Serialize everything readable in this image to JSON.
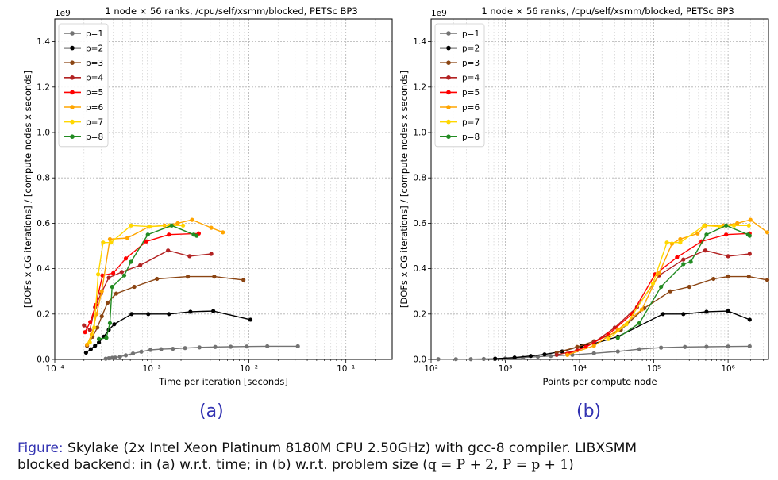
{
  "colors": {
    "p=1": "#737373",
    "p=2": "#000000",
    "p=3": "#8b4513",
    "p=4": "#b22222",
    "p=5": "#ff0000",
    "p=6": "#ffa500",
    "p=7": "#ffd700",
    "p=8": "#228b22"
  },
  "chart_data": [
    {
      "type": "line",
      "title": "1 node × 56 ranks, /cpu/self/xsmm/blocked, PETSc BP3",
      "xlabel": "Time per iteration [seconds]",
      "ylabel": "[DOFs x CG iterations] / [compute nodes x seconds]",
      "xscale": "log",
      "xlim": [
        0.0001,
        0.3
      ],
      "ylim": [
        0,
        1500000000.0
      ],
      "y_offset_label": "1e9",
      "x_ticks": [
        0.0001,
        0.001,
        0.01,
        0.1
      ],
      "x_tick_labels": [
        "10⁻⁴",
        "10⁻³",
        "10⁻²",
        "10⁻¹"
      ],
      "y_ticks": [
        0,
        0.2,
        0.4,
        0.6,
        0.8,
        1.0,
        1.2,
        1.4
      ],
      "y_tick_labels": [
        "0.0",
        "0.2",
        "0.4",
        "0.6",
        "0.8",
        "1.0",
        "1.2",
        "1.4"
      ],
      "grid": true,
      "legend_position": "top-left",
      "series": [
        {
          "name": "p=1",
          "x": [
            0.000335,
            0.00036,
            0.00039,
            0.00042,
            0.00047,
            0.00054,
            0.00064,
            0.00078,
            0.00097,
            0.00125,
            0.00165,
            0.0022,
            0.0031,
            0.0045,
            0.0065,
            0.0095,
            0.0155,
            0.032
          ],
          "y": [
            0.003,
            0.005,
            0.007,
            0.008,
            0.012,
            0.018,
            0.026,
            0.034,
            0.042,
            0.045,
            0.047,
            0.05,
            0.053,
            0.055,
            0.056,
            0.057,
            0.058,
            0.058
          ]
        },
        {
          "name": "p=2",
          "x": [
            0.00021,
            0.000235,
            0.00026,
            0.000285,
            0.00032,
            0.00036,
            0.00041,
            0.00062,
            0.00092,
            0.0015,
            0.0025,
            0.0043,
            0.0104
          ],
          "y": [
            0.03,
            0.045,
            0.06,
            0.075,
            0.1,
            0.13,
            0.155,
            0.2,
            0.2,
            0.2,
            0.21,
            0.213,
            0.175
          ]
        },
        {
          "name": "p=3",
          "x": [
            0.000215,
            0.000245,
            0.000275,
            0.000305,
            0.00035,
            0.00043,
            0.00066,
            0.00113,
            0.00235,
            0.0044,
            0.0088
          ],
          "y": [
            0.06,
            0.1,
            0.14,
            0.19,
            0.25,
            0.29,
            0.32,
            0.355,
            0.365,
            0.365,
            0.35
          ]
        },
        {
          "name": "p=4",
          "x": [
            0.0002,
            0.00023,
            0.00026,
            0.0003,
            0.00036,
            0.00049,
            0.00076,
            0.00147,
            0.00245,
            0.0041
          ],
          "y": [
            0.15,
            0.13,
            0.23,
            0.29,
            0.36,
            0.385,
            0.415,
            0.48,
            0.455,
            0.465
          ]
        },
        {
          "name": "p=5",
          "x": [
            0.000205,
            0.000232,
            0.000265,
            0.00031,
            0.0004,
            0.00054,
            0.00088,
            0.0015,
            0.00305
          ],
          "y": [
            0.12,
            0.165,
            0.24,
            0.37,
            0.38,
            0.445,
            0.52,
            0.55,
            0.555
          ]
        },
        {
          "name": "p=6",
          "x": [
            0.000215,
            0.00024,
            0.00027,
            0.000305,
            0.00037,
            0.00056,
            0.00094,
            0.00135,
            0.00185,
            0.0026,
            0.0041,
            0.0054
          ],
          "y": [
            0.065,
            0.11,
            0.2,
            0.3,
            0.53,
            0.535,
            0.585,
            0.59,
            0.6,
            0.615,
            0.58,
            0.56
          ]
        },
        {
          "name": "p=7",
          "x": [
            0.00023,
            0.000255,
            0.00028,
            0.000315,
            0.00038,
            0.00061,
            0.00095,
            0.0015,
            0.0021
          ],
          "y": [
            0.075,
            0.14,
            0.375,
            0.515,
            0.515,
            0.59,
            0.585,
            0.59,
            0.59
          ]
        },
        {
          "name": "p=8",
          "x": [
            0.000285,
            0.00034,
            0.00037,
            0.00039,
            0.00052,
            0.00061,
            0.00091,
            0.0016,
            0.0027,
            0.0029
          ],
          "y": [
            0.09,
            0.095,
            0.16,
            0.32,
            0.37,
            0.43,
            0.55,
            0.59,
            0.55,
            0.545
          ]
        }
      ]
    },
    {
      "type": "line",
      "title": "1 node × 56 ranks, /cpu/self/xsmm/blocked, PETSc BP3",
      "xlabel": "Points per compute node",
      "ylabel": "[DOFs x CG iterations] / [compute nodes x seconds]",
      "xscale": "log",
      "xlim": [
        100,
        3500000
      ],
      "ylim": [
        0,
        1500000000.0
      ],
      "y_offset_label": "1e9",
      "x_ticks": [
        100,
        1000,
        10000,
        100000,
        1000000
      ],
      "x_tick_labels": [
        "10²",
        "10³",
        "10⁴",
        "10⁵",
        "10⁶"
      ],
      "y_ticks": [
        0,
        0.2,
        0.4,
        0.6,
        0.8,
        1.0,
        1.2,
        1.4
      ],
      "y_tick_labels": [
        "0.0",
        "0.2",
        "0.4",
        "0.6",
        "0.8",
        "1.0",
        "1.2",
        "1.4"
      ],
      "grid": true,
      "legend_position": "top-left",
      "series": [
        {
          "name": "p=1",
          "x": [
            125,
            216,
            343,
            512,
            729,
            1000,
            1728,
            2744,
            4096,
            8000,
            15625,
            32768,
            64000,
            125000,
            262144,
            512000,
            1000000,
            1953125
          ],
          "y": [
            0.001,
            0.001,
            0.001,
            0.002,
            0.003,
            0.004,
            0.008,
            0.012,
            0.015,
            0.02,
            0.027,
            0.035,
            0.045,
            0.052,
            0.055,
            0.056,
            0.057,
            0.058
          ]
        },
        {
          "name": "p=2",
          "x": [
            729,
            1331,
            2197,
            3375,
            5832,
            10648,
            15625,
            32768,
            132651,
            250047,
            512000,
            1000000,
            1953125
          ],
          "y": [
            0.003,
            0.008,
            0.015,
            0.022,
            0.035,
            0.06,
            0.07,
            0.1,
            0.2,
            0.2,
            0.21,
            0.213,
            0.175
          ]
        },
        {
          "name": "p=3",
          "x": [
            4913,
            9261,
            15625,
            24389,
            35937,
            74088,
            166375,
            300763,
            636056,
            1000000,
            1906624,
            3375000
          ],
          "y": [
            0.03,
            0.055,
            0.08,
            0.105,
            0.13,
            0.225,
            0.3,
            0.32,
            0.355,
            0.365,
            0.365,
            0.35
          ]
        },
        {
          "name": "p=4",
          "x": [
            4913,
            9261,
            15625,
            29791,
            59319,
            117649,
            250047,
            493039,
            1000000,
            1953125
          ],
          "y": [
            0.02,
            0.04,
            0.075,
            0.14,
            0.23,
            0.37,
            0.44,
            0.48,
            0.455,
            0.465
          ]
        },
        {
          "name": "p=5",
          "x": [
            6859,
            12167,
            24389,
            50653,
            103823,
            205379,
            438976,
            941192,
            1953125
          ],
          "y": [
            0.025,
            0.055,
            0.11,
            0.2,
            0.375,
            0.45,
            0.52,
            0.55,
            0.555
          ]
        },
        {
          "name": "p=6",
          "x": [
            6859,
            15625,
            32768,
            68921,
            117649,
            175616,
            226981,
            389017,
            493039,
            857375,
            1331000,
            2000376,
            3375000
          ],
          "y": [
            0.02,
            0.06,
            0.13,
            0.22,
            0.38,
            0.51,
            0.53,
            0.555,
            0.59,
            0.59,
            0.6,
            0.615,
            0.56
          ]
        },
        {
          "name": "p=7",
          "x": [
            24389,
            42875,
            97336,
            150000,
            226981,
            474552,
            778688,
            1200000,
            1906624
          ],
          "y": [
            0.09,
            0.155,
            0.335,
            0.515,
            0.515,
            0.59,
            0.585,
            0.59,
            0.59
          ]
        },
        {
          "name": "p=8",
          "x": [
            32768,
            64000,
            125000,
            250047,
            314432,
            512000,
            941192,
            1860867,
            1953125
          ],
          "y": [
            0.095,
            0.16,
            0.32,
            0.42,
            0.43,
            0.55,
            0.59,
            0.55,
            0.545
          ]
        }
      ]
    }
  ],
  "sublabels": [
    "(a)",
    "(b)"
  ],
  "caption": {
    "prefix": "Figure:",
    "line1": "Skylake (2x Intel Xeon Platinum 8180M CPU 2.50GHz) with gcc-8 compiler. LIBXSMM",
    "line2": "blocked backend: in (a) w.r.t. time; in (b) w.r.t. problem size (",
    "math": "q = P + 2,  P = p + 1",
    "line2_end": ")"
  }
}
